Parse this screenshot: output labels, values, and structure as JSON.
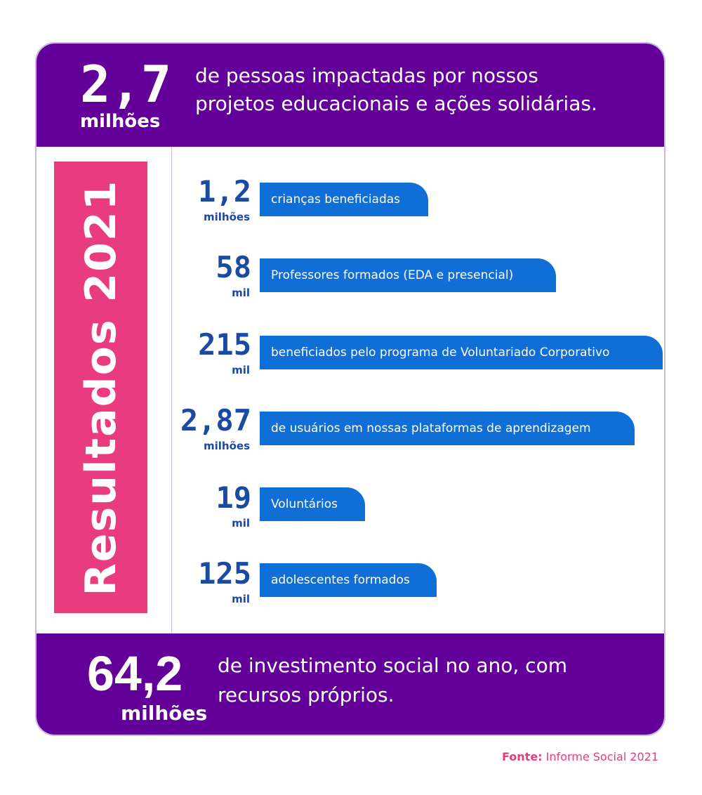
{
  "header": {
    "number": "2,7",
    "unit": "milhões",
    "line1": "de pessoas impactadas por nossos",
    "line2": "projetos educacionais e ações solidárias."
  },
  "side_title": "Resultados 2021",
  "stats": [
    {
      "number": "1,2",
      "unit": "milhões",
      "label": "crianças beneficiadas"
    },
    {
      "number": "58",
      "unit": "mil",
      "label": "Professores formados (EDA e presencial)"
    },
    {
      "number": "215",
      "unit": "mil",
      "label": "beneficiados pelo programa de Voluntariado Corporativo"
    },
    {
      "number": "2,87",
      "unit": "milhões",
      "label": "de usuários em nossas plataformas de aprendizagem"
    },
    {
      "number": "19",
      "unit": "mil",
      "label": "Voluntários"
    },
    {
      "number": "125",
      "unit": "mil",
      "label": "adolescentes formados"
    }
  ],
  "footer": {
    "number": "64,2",
    "unit": "milhões",
    "line1": "de investimento social no ano, com",
    "line2": "recursos próprios."
  },
  "source": {
    "label": "Fonte:",
    "text": " Informe Social 2021"
  },
  "colors": {
    "purple": "#64009a",
    "pink": "#e83c7f",
    "blue_pill": "#0f6fd6",
    "blue_text": "#1b4aa2"
  }
}
